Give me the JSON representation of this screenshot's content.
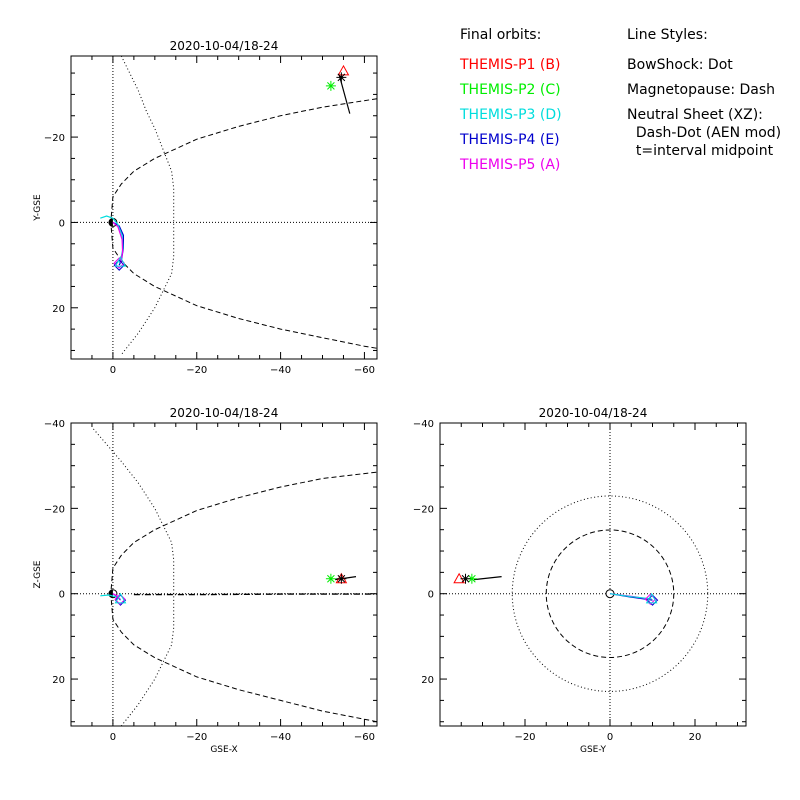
{
  "legend": {
    "orbits_header": "Final orbits:",
    "styles_header": "Line Styles:",
    "probes": [
      {
        "label": "THEMIS-P1 (B)",
        "color": "#ff0000"
      },
      {
        "label": "THEMIS-P2 (C)",
        "color": "#00ee00"
      },
      {
        "label": "THEMIS-P3 (D)",
        "color": "#00dddd"
      },
      {
        "label": "THEMIS-P4 (E)",
        "color": "#0000cc"
      },
      {
        "label": "THEMIS-P5 (A)",
        "color": "#ee00ee"
      }
    ],
    "styles": [
      "BowShock: Dot",
      "Magnetopause: Dash",
      "Neutral Sheet (XZ):",
      "  Dash-Dot (AEN mod)",
      "  t=interval midpoint"
    ]
  },
  "chart_data": [
    {
      "type": "line",
      "id": "xy",
      "title": "2020-10-04/18-24",
      "xlabel": "",
      "ylabel": "Y-GSE",
      "xlim": [
        10,
        -63
      ],
      "ylim": [
        -39,
        32
      ],
      "xticks": [
        0,
        -20,
        -40,
        -60
      ],
      "yticks": [
        -20,
        0,
        20
      ],
      "grid": false,
      "bow_shock": [
        [
          -2,
          -39
        ],
        [
          -6,
          -31
        ],
        [
          -8,
          -26
        ],
        [
          -10,
          -22
        ],
        [
          -14,
          -12
        ],
        [
          -14.5,
          -8
        ],
        [
          -14.5,
          0
        ],
        [
          -14.5,
          8
        ],
        [
          -14,
          12
        ],
        [
          -10,
          20
        ],
        [
          -6,
          26
        ],
        [
          -2,
          31
        ]
      ],
      "magnetopause": [
        [
          -63,
          -29
        ],
        [
          -50,
          -27
        ],
        [
          -40,
          -25
        ],
        [
          -30,
          -22.5
        ],
        [
          -20,
          -19.5
        ],
        [
          -10,
          -15
        ],
        [
          -5,
          -12
        ],
        [
          -2,
          -9
        ],
        [
          0,
          -6
        ],
        [
          0.5,
          0
        ],
        [
          0,
          6
        ],
        [
          -2,
          9
        ],
        [
          -5,
          12
        ],
        [
          -10,
          15
        ],
        [
          -20,
          19.5
        ],
        [
          -30,
          22.5
        ],
        [
          -40,
          25
        ],
        [
          -50,
          27
        ],
        [
          -60,
          29
        ],
        [
          -63,
          29.5
        ]
      ],
      "series": [
        {
          "color": "#0000cc",
          "points": [
            [
              0,
              0
            ],
            [
              -1.5,
              0.8
            ],
            [
              -2.5,
              3
            ],
            [
              -2.5,
              6
            ],
            [
              -2,
              9
            ],
            [
              -1.5,
              10
            ]
          ]
        },
        {
          "color": "#00dddd",
          "points": [
            [
              3,
              -1
            ],
            [
              1.5,
              -1.5
            ],
            [
              0,
              -1
            ],
            [
              -1.2,
              0.5
            ],
            [
              -2.2,
              3
            ],
            [
              -2.4,
              6
            ],
            [
              -2,
              8
            ],
            [
              -1.5,
              9.5
            ]
          ]
        },
        {
          "color": "#ee00ee",
          "points": [
            [
              0,
              0
            ],
            [
              -1.2,
              1
            ],
            [
              -2.2,
              4
            ],
            [
              -2.3,
              7
            ],
            [
              -1.8,
              9.5
            ]
          ]
        },
        {
          "color": "#000000",
          "points": [
            [
              -54,
              -34.5
            ],
            [
              -56.5,
              -25.5
            ]
          ]
        }
      ],
      "markers": [
        {
          "x": -55,
          "y": -35.5,
          "shape": "triangle",
          "color": "#ff0000"
        },
        {
          "x": -52,
          "y": -32,
          "shape": "asterisk",
          "color": "#00ee00"
        },
        {
          "x": -54.5,
          "y": -34,
          "shape": "asterisk",
          "color": "#000000"
        },
        {
          "x": -1.5,
          "y": 10,
          "shape": "diamond",
          "color": "#0000cc"
        },
        {
          "x": -1.5,
          "y": 9.5,
          "shape": "diamond",
          "color": "#ee00ee"
        },
        {
          "x": -1.8,
          "y": 9.3,
          "shape": "triangle",
          "color": "#00dddd"
        }
      ]
    },
    {
      "type": "line",
      "id": "xz",
      "title": "2020-10-04/18-24",
      "xlabel": "GSE-X",
      "ylabel": "Z-GSE",
      "xlim": [
        10,
        -63
      ],
      "ylim": [
        -40,
        31
      ],
      "xticks": [
        0,
        -20,
        -40,
        -60
      ],
      "yticks": [
        20,
        0,
        -20,
        -40
      ],
      "grid": false,
      "bow_shock": [
        [
          -2,
          31
        ],
        [
          -6,
          26
        ],
        [
          -10,
          20
        ],
        [
          -14,
          12
        ],
        [
          -14.5,
          8
        ],
        [
          -14.5,
          0
        ],
        [
          -14.5,
          -8
        ],
        [
          -14,
          -12
        ],
        [
          -10,
          -20
        ],
        [
          -6,
          -26
        ],
        [
          -2,
          -31
        ],
        [
          5,
          -39
        ]
      ],
      "magnetopause": [
        [
          -63,
          30
        ],
        [
          -50,
          27.5
        ],
        [
          -40,
          25
        ],
        [
          -30,
          22.5
        ],
        [
          -20,
          19.5
        ],
        [
          -10,
          15
        ],
        [
          -5,
          12
        ],
        [
          -2,
          9
        ],
        [
          0,
          6
        ],
        [
          0.5,
          0
        ],
        [
          0,
          -6
        ],
        [
          -2,
          -9
        ],
        [
          -5,
          -12
        ],
        [
          -10,
          -15
        ],
        [
          -20,
          -19.5
        ],
        [
          -30,
          -22.5
        ],
        [
          -40,
          -25
        ],
        [
          -50,
          -27
        ],
        [
          -63,
          -28.5
        ]
      ],
      "neutral_sheet": [
        [
          -5,
          0.2
        ],
        [
          -20,
          0.2
        ],
        [
          -40,
          0.1
        ],
        [
          -63,
          0.1
        ]
      ],
      "series": [
        {
          "color": "#0000cc",
          "points": [
            [
              0,
              0
            ],
            [
              -1,
              0.6
            ],
            [
              -1.5,
              1.2
            ],
            [
              -1.8,
              1.5
            ]
          ]
        },
        {
          "color": "#00dddd",
          "points": [
            [
              3,
              0.5
            ],
            [
              1,
              0.3
            ],
            [
              -1,
              0.8
            ],
            [
              -1.8,
              1.3
            ]
          ]
        },
        {
          "color": "#ee00ee",
          "points": [
            [
              0,
              0
            ],
            [
              -1,
              0.5
            ],
            [
              -1.7,
              1.3
            ]
          ]
        },
        {
          "color": "#000000",
          "points": [
            [
              -53,
              -3.3
            ],
            [
              -58,
              -4
            ]
          ]
        }
      ],
      "markers": [
        {
          "x": -54.5,
          "y": -3.5,
          "shape": "triangle",
          "color": "#ff0000"
        },
        {
          "x": -52,
          "y": -3.5,
          "shape": "asterisk",
          "color": "#00ee00"
        },
        {
          "x": -54.5,
          "y": -3.5,
          "shape": "asterisk",
          "color": "#000000"
        },
        {
          "x": -1.8,
          "y": 1.5,
          "shape": "diamond",
          "color": "#0000cc"
        },
        {
          "x": -1.7,
          "y": 1.3,
          "shape": "diamond",
          "color": "#ee00ee"
        },
        {
          "x": -1.8,
          "y": 1.2,
          "shape": "triangle",
          "color": "#00dddd"
        }
      ]
    },
    {
      "type": "line",
      "id": "yz",
      "title": "2020-10-04/18-24",
      "xlabel": "GSE-Y",
      "ylabel": "",
      "xlim": [
        -40,
        32
      ],
      "ylim": [
        -40,
        31
      ],
      "xticks": [
        -20,
        0,
        20
      ],
      "yticks": [
        20,
        0,
        -20,
        -40
      ],
      "grid": false,
      "bow_shock_radius": 23,
      "magnetopause_radius": 15,
      "series": [
        {
          "color": "#0000cc",
          "points": [
            [
              0,
              0
            ],
            [
              5,
              0.8
            ],
            [
              10,
              1.5
            ]
          ]
        },
        {
          "color": "#ee00ee",
          "points": [
            [
              0,
              0
            ],
            [
              5,
              0.6
            ],
            [
              9.5,
              1.3
            ]
          ]
        },
        {
          "color": "#00dddd",
          "points": [
            [
              0,
              0
            ],
            [
              5,
              0.7
            ],
            [
              9.8,
              1.2
            ]
          ]
        },
        {
          "color": "#000000",
          "points": [
            [
              -32,
              -3.3
            ],
            [
              -25.5,
              -4
            ]
          ]
        }
      ],
      "markers": [
        {
          "x": -35.5,
          "y": -3.5,
          "shape": "triangle",
          "color": "#ff0000"
        },
        {
          "x": -32.5,
          "y": -3.5,
          "shape": "asterisk",
          "color": "#00ee00"
        },
        {
          "x": -34,
          "y": -3.5,
          "shape": "asterisk",
          "color": "#000000"
        },
        {
          "x": 10,
          "y": 1.5,
          "shape": "diamond",
          "color": "#0000cc"
        },
        {
          "x": 9.5,
          "y": 1.3,
          "shape": "diamond",
          "color": "#ee00ee"
        },
        {
          "x": 9.8,
          "y": 1.2,
          "shape": "triangle",
          "color": "#00dddd"
        }
      ]
    }
  ]
}
